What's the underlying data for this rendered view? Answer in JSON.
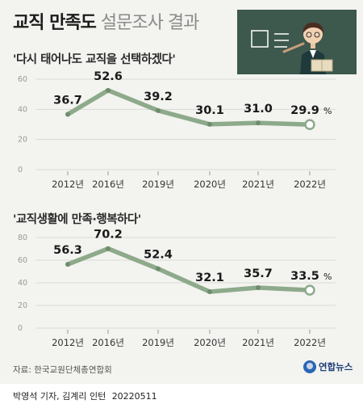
{
  "header": {
    "title_bold": "교직 만족도",
    "title_light": "설문조사 결과"
  },
  "colors": {
    "line": "#8daa8b",
    "board": "#3d584d",
    "grid": "#d9d9d4",
    "axis_text": "#999999",
    "value_text": "#1a1a1a"
  },
  "chart_data": [
    {
      "type": "line",
      "title": "'다시 태어나도 교직을 선택하겠다'",
      "categories": [
        "2012년",
        "2016년",
        "2019년",
        "2020년",
        "2021년",
        "2022년"
      ],
      "values": [
        36.7,
        52.6,
        39.2,
        30.1,
        31.0,
        29.9
      ],
      "value_labels": [
        "36.7",
        "52.6",
        "39.2",
        "30.1",
        "31.0",
        "29.9"
      ],
      "yticks": [
        "60",
        "40",
        "20",
        "0"
      ],
      "ylim": [
        0,
        60
      ],
      "unit": "%",
      "grid": true
    },
    {
      "type": "line",
      "title": "'교직생활에 만족·행복하다'",
      "categories": [
        "2012년",
        "2016년",
        "2019년",
        "2020년",
        "2021년",
        "2022년"
      ],
      "values": [
        56.3,
        70.2,
        52.4,
        32.1,
        35.7,
        33.5
      ],
      "value_labels": [
        "56.3",
        "70.2",
        "52.4",
        "32.1",
        "35.7",
        "33.5"
      ],
      "yticks": [
        "80",
        "60",
        "40",
        "20",
        "0"
      ],
      "ylim": [
        0,
        80
      ],
      "unit": "%",
      "grid": true
    }
  ],
  "footer": {
    "source": "자료: 한국교원단체총연합회",
    "logo": "연합뉴스",
    "credit": "박영석 기자, 김계리 인턴",
    "date": "20220511"
  }
}
